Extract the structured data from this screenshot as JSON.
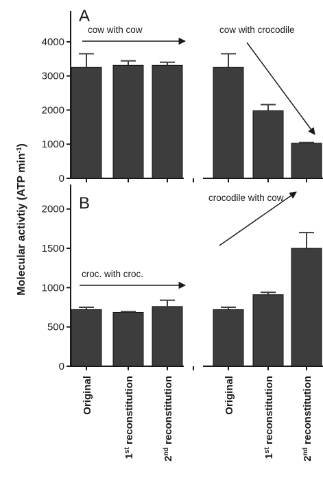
{
  "y_axis_label": "Molecular activtiy (ATP min",
  "y_axis_label_sup": "-1",
  "y_axis_label_end": ")",
  "category_labels": [
    {
      "pre": "",
      "sup": "",
      "post": "Original"
    },
    {
      "pre": "1",
      "sup": "st",
      "post": " reconstitution"
    },
    {
      "pre": "2",
      "sup": "nd",
      "post": " reconstitution"
    },
    {
      "pre": "",
      "sup": "",
      "post": "Original"
    },
    {
      "pre": "1",
      "sup": "st",
      "post": " reconstitution"
    },
    {
      "pre": "2",
      "sup": "nd",
      "post": " reconstitution"
    }
  ],
  "colors": {
    "bar": "#3d3d3d",
    "axis": "#1a1a1a"
  },
  "chart_data": [
    {
      "type": "bar",
      "panel": "A",
      "groups": [
        {
          "annotation": "cow with cow",
          "arrow": "horizontal",
          "bars": [
            {
              "label": "Original",
              "value": 3250,
              "error": 400
            },
            {
              "label": "1st reconstitution",
              "value": 3310,
              "error": 130
            },
            {
              "label": "2nd reconstitution",
              "value": 3310,
              "error": 90
            }
          ]
        },
        {
          "annotation": "cow with crocodile",
          "arrow": "down",
          "bars": [
            {
              "label": "Original",
              "value": 3250,
              "error": 400
            },
            {
              "label": "1st reconstitution",
              "value": 1980,
              "error": 180
            },
            {
              "label": "2nd reconstitution",
              "value": 1030,
              "error": 20
            }
          ]
        }
      ],
      "ylim": [
        0,
        4300
      ],
      "yticks": [
        0,
        1000,
        2000,
        3000,
        4000
      ]
    },
    {
      "type": "bar",
      "panel": "B",
      "groups": [
        {
          "annotation": "croc. with croc.",
          "arrow": "horizontal",
          "bars": [
            {
              "label": "Original",
              "value": 720,
              "error": 30
            },
            {
              "label": "1st reconstitution",
              "value": 685,
              "error": 10
            },
            {
              "label": "2nd reconstitution",
              "value": 760,
              "error": 80
            }
          ]
        },
        {
          "annotation": "crocodile with cow",
          "arrow": "up",
          "bars": [
            {
              "label": "Original",
              "value": 720,
              "error": 30
            },
            {
              "label": "1st reconstitution",
              "value": 910,
              "error": 30
            },
            {
              "label": "2nd reconstitution",
              "value": 1500,
              "error": 200
            }
          ]
        }
      ],
      "ylim": [
        0,
        2050
      ],
      "yticks": [
        0,
        500,
        1000,
        1500,
        2000
      ]
    }
  ]
}
